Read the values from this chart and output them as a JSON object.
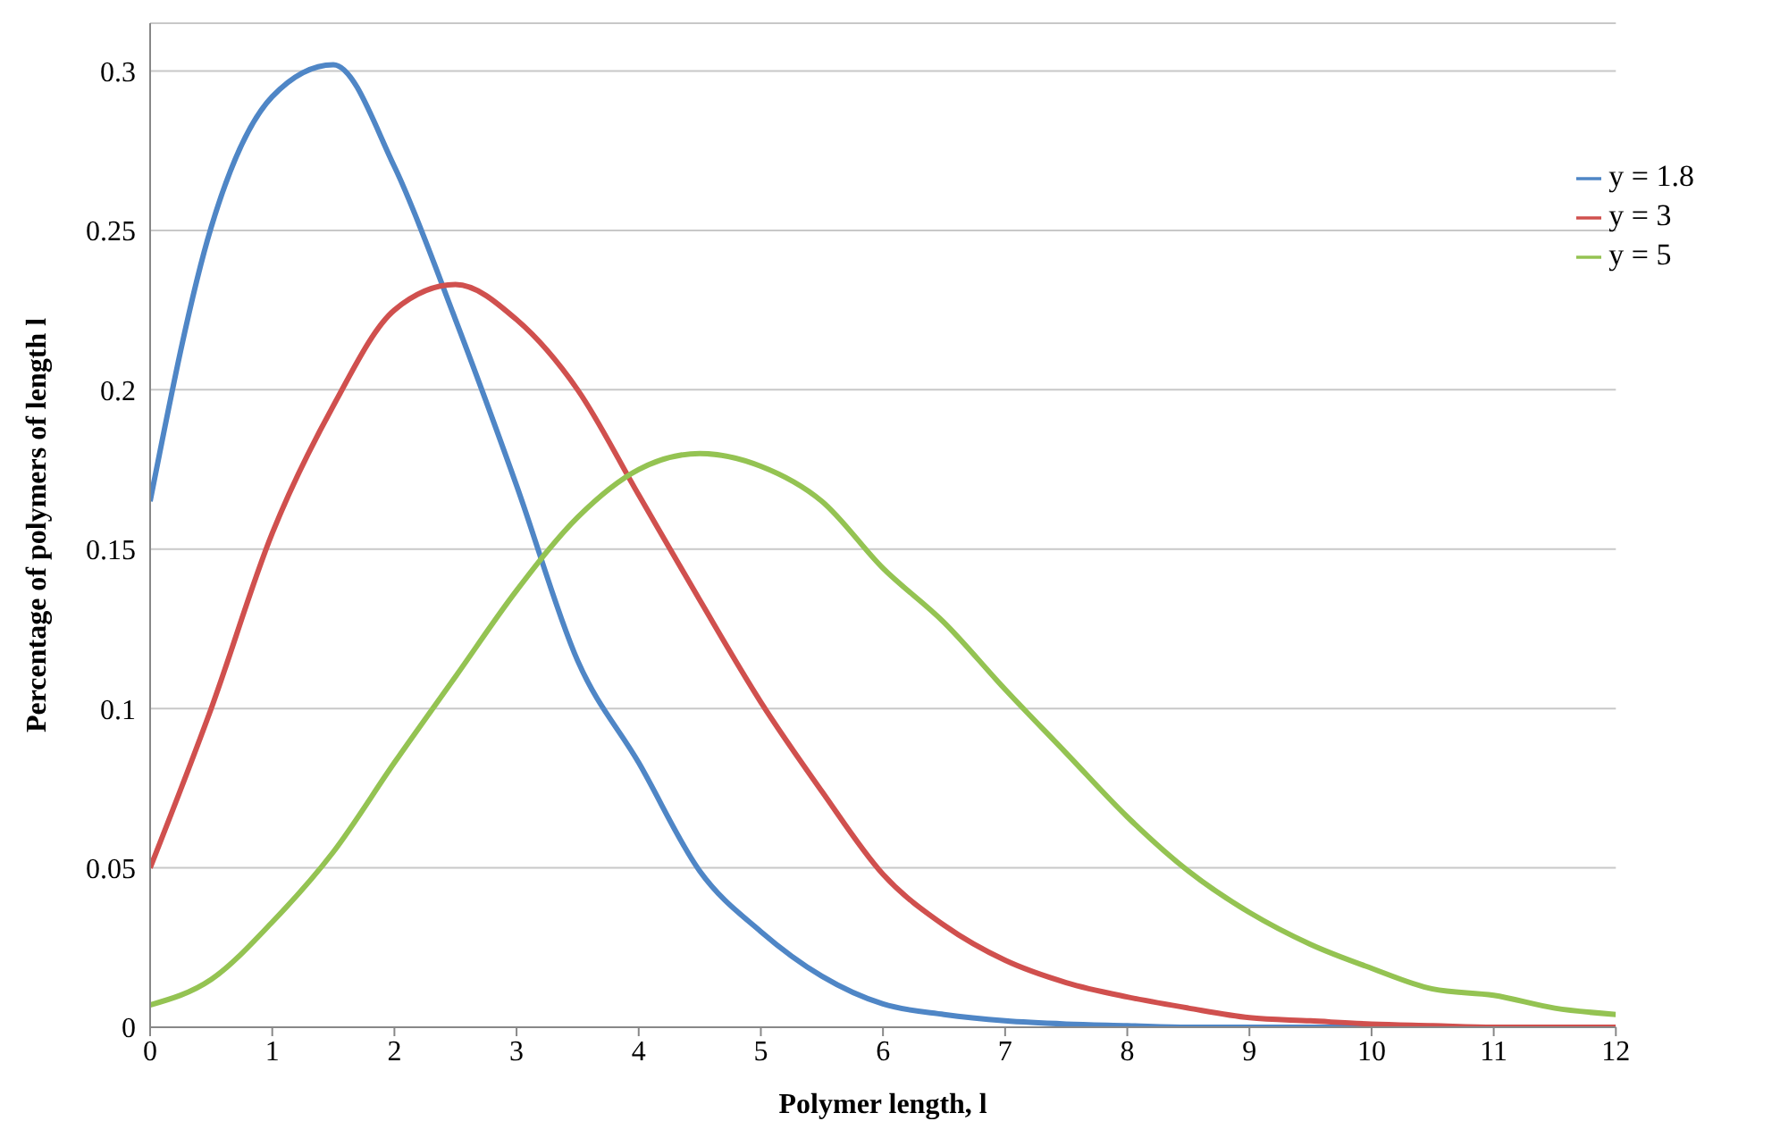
{
  "chart_data": {
    "type": "line",
    "xlabel": "Polymer length, l",
    "ylabel": "Percentage of polymers of length l",
    "x": [
      0,
      0.5,
      1,
      1.5,
      2,
      2.5,
      3,
      3.5,
      4,
      4.5,
      5,
      5.5,
      6,
      6.5,
      7,
      7.5,
      8,
      8.5,
      9,
      9.5,
      10,
      10.5,
      11,
      11.5,
      12
    ],
    "series": [
      {
        "name": "y = 1.8",
        "color": "#4f86c6",
        "values": [
          0.165,
          0.251,
          0.292,
          0.302,
          0.27,
          0.222,
          0.17,
          0.115,
          0.083,
          0.049,
          0.03,
          0.016,
          0.0073,
          0.004,
          0.002,
          0.001,
          0.0005,
          0,
          0,
          0,
          0,
          0,
          null,
          null,
          null
        ]
      },
      {
        "name": "y = 3",
        "color": "#d0504e",
        "values": [
          0.05,
          0.1,
          0.155,
          0.195,
          0.225,
          0.233,
          0.222,
          0.2,
          0.167,
          0.134,
          0.102,
          0.074,
          0.048,
          0.032,
          0.021,
          0.014,
          0.0095,
          0.006,
          0.003,
          0.002,
          0.001,
          0.0005,
          0,
          0,
          0
        ]
      },
      {
        "name": "y = 5",
        "color": "#94c352",
        "values": [
          0.007,
          0.015,
          0.033,
          0.055,
          0.083,
          0.11,
          0.137,
          0.16,
          0.175,
          0.18,
          0.176,
          0.165,
          0.144,
          0.127,
          0.106,
          0.086,
          0.066,
          0.049,
          0.036,
          0.026,
          0.0185,
          0.012,
          0.01,
          0.006,
          0.004
        ]
      }
    ],
    "xlim": [
      0,
      12
    ],
    "xticks": [
      0,
      1,
      2,
      3,
      4,
      5,
      6,
      7,
      8,
      9,
      10,
      11,
      12
    ],
    "ylim": [
      0,
      0.315
    ],
    "yticks": [
      0,
      0.05,
      0.1,
      0.15,
      0.2,
      0.25,
      0.3
    ],
    "grid": "y",
    "legend": "top right",
    "marker": "none",
    "line_style": "solid"
  }
}
